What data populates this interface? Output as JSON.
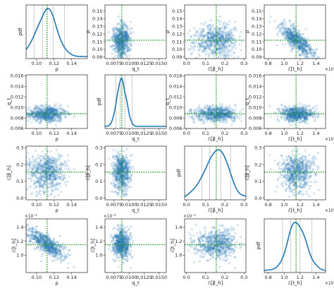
{
  "colors": {
    "kde": "#1f77b4",
    "scatter": "#1f77b4",
    "truth": "#2ca02c",
    "quantile": "#aaaaaa"
  },
  "chart_data": {
    "type": "scatter",
    "layout": "4x4 corner-style pair plot; diagonal panels show pdf curves, off-diagonal panels show scatter clouds",
    "variables": [
      {
        "name": "rho",
        "label": "ρ",
        "truth": 0.112,
        "lim": [
          0.088,
          0.158
        ],
        "ticks": [
          0.1,
          0.12,
          0.14
        ],
        "tick_labels": [
          "0.10",
          "0.12",
          "0.14"
        ],
        "pdf_lines": [
          0.097,
          0.107,
          0.112,
          0.119,
          0.132
        ],
        "offset": ""
      },
      {
        "name": "q_t",
        "label": "q_t",
        "truth": 0.0088,
        "lim": [
          0.006,
          0.0162
        ],
        "ticks": [
          0.0075,
          0.01,
          0.0125,
          0.015
        ],
        "tick_labels": [
          "0.0075",
          "0.0100",
          "0.0125",
          "0.0150"
        ],
        "pdf_lines": [
          0.0078,
          0.0085,
          0.0088,
          0.0093,
          0.0105
        ],
        "offset": ""
      },
      {
        "name": "E_beta_h",
        "label": "ℰ[β_h]",
        "truth": 0.155,
        "lim": [
          -0.01,
          0.31
        ],
        "ticks": [
          0.0,
          0.1,
          0.2,
          0.3
        ],
        "tick_labels": [
          "0.0",
          "0.1",
          "0.2",
          "0.3"
        ],
        "pdf_lines": [
          0.08,
          0.12,
          0.155,
          0.18,
          0.23
        ],
        "offset": ""
      },
      {
        "name": "E_t_h",
        "label": "ℰ[t_h]",
        "truth": 0.00115,
        "lim": [
          0.00075,
          0.00152
        ],
        "ticks": [
          0.0008,
          0.001,
          0.0012,
          0.0014
        ],
        "tick_labels": [
          "0.8",
          "1.0",
          "1.2",
          "1.4"
        ],
        "pdf_lines": [
          0.00098,
          0.00108,
          0.00115,
          0.0012,
          0.00135
        ],
        "offset": "×10⁻³"
      }
    ],
    "diagonal_ylabel": "pdf",
    "row_tick_labels": [
      {
        "ticks": [
          0.09,
          0.1,
          0.11,
          0.12,
          0.13,
          0.14,
          0.15
        ],
        "labels": [
          "0.09",
          "0.10",
          "0.11",
          "0.12",
          "0.13",
          "0.14",
          "0.15"
        ],
        "offset": ""
      },
      {
        "ticks": [
          0.006,
          0.008,
          0.01,
          0.012,
          0.014,
          0.016
        ],
        "labels": [
          "0.006",
          "0.008",
          "0.010",
          "0.012",
          "0.014",
          "0.016"
        ],
        "offset": ""
      },
      {
        "ticks": [
          0.0,
          0.1,
          0.2,
          0.3
        ],
        "labels": [
          "0.0",
          "0.1",
          "0.2",
          "0.3"
        ],
        "offset": ""
      },
      {
        "ticks": [
          0.001,
          0.0012,
          0.0014
        ],
        "labels": [
          "1.0",
          "1.2",
          "1.4"
        ],
        "offset": "×10⁻³"
      }
    ],
    "correlations": {
      "rho|E_t_h": -0.78
    },
    "scatter_points_per_panel": 600,
    "scatter_alpha": 0.18
  }
}
